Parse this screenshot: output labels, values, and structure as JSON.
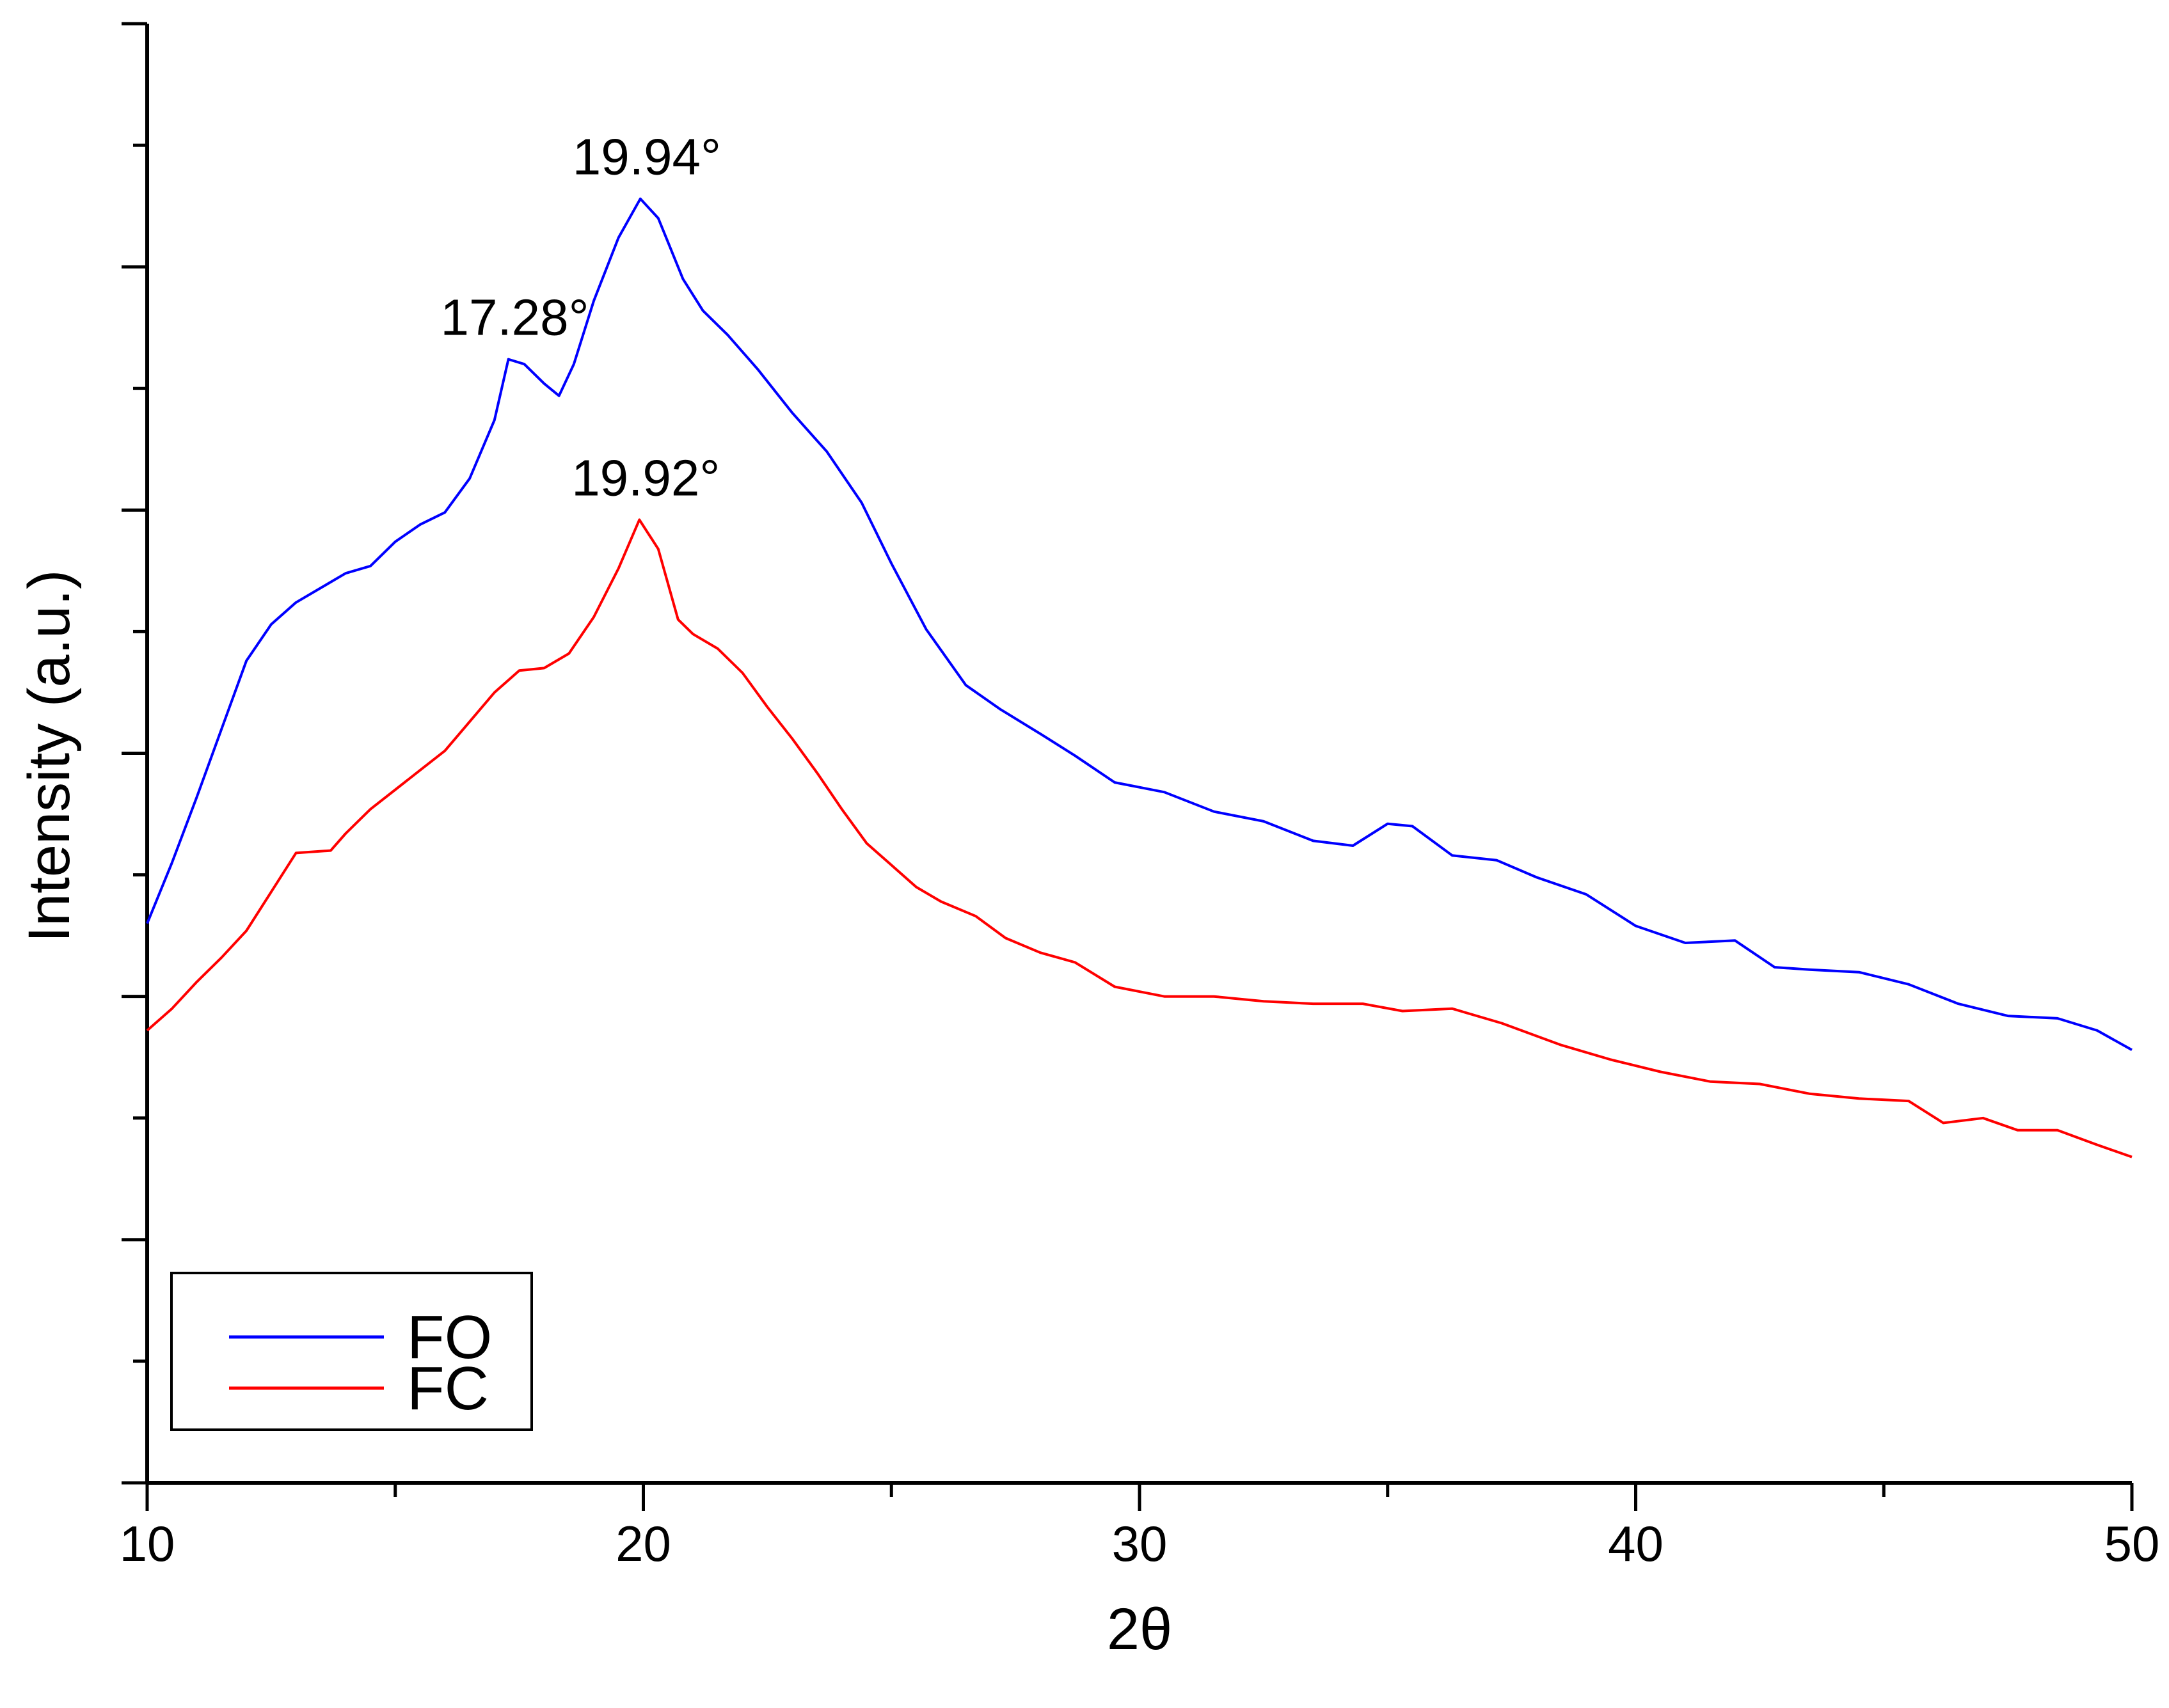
{
  "chart_data": {
    "type": "line",
    "xlabel": "2θ",
    "ylabel": "Intensity (a.u.)",
    "xlim": [
      10,
      50
    ],
    "ylim": [
      0,
      6
    ],
    "xticks": [
      10,
      20,
      30,
      40,
      50
    ],
    "xtick_labels": [
      "10",
      "20",
      "30",
      "40",
      "50"
    ],
    "grid": false,
    "legend_position": "bottom-left",
    "series": [
      {
        "name": "FO",
        "color": "#0000ff",
        "points": [
          [
            10,
            2.3
          ],
          [
            10.5,
            2.55
          ],
          [
            11,
            2.82
          ],
          [
            11.5,
            3.1
          ],
          [
            12,
            3.38
          ],
          [
            12.5,
            3.53
          ],
          [
            13,
            3.62
          ],
          [
            13.5,
            3.68
          ],
          [
            14,
            3.74
          ],
          [
            14.5,
            3.77
          ],
          [
            15,
            3.87
          ],
          [
            15.5,
            3.94
          ],
          [
            16,
            3.99
          ],
          [
            16.5,
            4.13
          ],
          [
            17,
            4.37
          ],
          [
            17.28,
            4.62
          ],
          [
            17.6,
            4.6
          ],
          [
            18,
            4.52
          ],
          [
            18.3,
            4.47
          ],
          [
            18.6,
            4.6
          ],
          [
            19,
            4.86
          ],
          [
            19.5,
            5.12
          ],
          [
            19.94,
            5.28
          ],
          [
            20.3,
            5.2
          ],
          [
            20.8,
            4.95
          ],
          [
            21.2,
            4.82
          ],
          [
            21.7,
            4.72
          ],
          [
            22.3,
            4.58
          ],
          [
            23,
            4.4
          ],
          [
            23.7,
            4.24
          ],
          [
            24.4,
            4.03
          ],
          [
            25,
            3.78
          ],
          [
            25.7,
            3.51
          ],
          [
            26.5,
            3.28
          ],
          [
            27.2,
            3.18
          ],
          [
            28,
            3.08
          ],
          [
            28.7,
            2.99
          ],
          [
            29.5,
            2.88
          ],
          [
            30.5,
            2.84
          ],
          [
            31.5,
            2.76
          ],
          [
            32.5,
            2.72
          ],
          [
            33.5,
            2.64
          ],
          [
            34.3,
            2.62
          ],
          [
            35,
            2.71
          ],
          [
            35.5,
            2.7
          ],
          [
            36.3,
            2.58
          ],
          [
            37.2,
            2.56
          ],
          [
            38,
            2.49
          ],
          [
            39,
            2.42
          ],
          [
            40,
            2.29
          ],
          [
            41,
            2.22
          ],
          [
            42,
            2.23
          ],
          [
            42.8,
            2.12
          ],
          [
            43.5,
            2.11
          ],
          [
            44.5,
            2.1
          ],
          [
            45.5,
            2.05
          ],
          [
            46.5,
            1.97
          ],
          [
            47.5,
            1.92
          ],
          [
            48.5,
            1.91
          ],
          [
            49.3,
            1.86
          ],
          [
            50,
            1.78
          ]
        ]
      },
      {
        "name": "FC",
        "color": "#ff0000",
        "points": [
          [
            10,
            1.86
          ],
          [
            10.5,
            1.95
          ],
          [
            11,
            2.06
          ],
          [
            11.5,
            2.16
          ],
          [
            12,
            2.27
          ],
          [
            12.5,
            2.43
          ],
          [
            13,
            2.59
          ],
          [
            13.7,
            2.6
          ],
          [
            14,
            2.67
          ],
          [
            14.5,
            2.77
          ],
          [
            15,
            2.85
          ],
          [
            15.5,
            2.93
          ],
          [
            16,
            3.01
          ],
          [
            16.5,
            3.13
          ],
          [
            17,
            3.25
          ],
          [
            17.5,
            3.34
          ],
          [
            18,
            3.35
          ],
          [
            18.5,
            3.41
          ],
          [
            19,
            3.56
          ],
          [
            19.5,
            3.76
          ],
          [
            19.92,
            3.96
          ],
          [
            20.3,
            3.84
          ],
          [
            20.7,
            3.55
          ],
          [
            21,
            3.49
          ],
          [
            21.5,
            3.43
          ],
          [
            22,
            3.33
          ],
          [
            22.5,
            3.19
          ],
          [
            23,
            3.06
          ],
          [
            23.5,
            2.92
          ],
          [
            24,
            2.77
          ],
          [
            24.5,
            2.63
          ],
          [
            25,
            2.54
          ],
          [
            25.5,
            2.45
          ],
          [
            26,
            2.39
          ],
          [
            26.7,
            2.33
          ],
          [
            27.3,
            2.24
          ],
          [
            28,
            2.18
          ],
          [
            28.7,
            2.14
          ],
          [
            29.5,
            2.04
          ],
          [
            30.5,
            2.0
          ],
          [
            31.5,
            2.0
          ],
          [
            32.5,
            1.98
          ],
          [
            33.5,
            1.97
          ],
          [
            34.5,
            1.97
          ],
          [
            35.3,
            1.94
          ],
          [
            36.3,
            1.95
          ],
          [
            37.3,
            1.89
          ],
          [
            38.5,
            1.8
          ],
          [
            39.5,
            1.74
          ],
          [
            40.5,
            1.69
          ],
          [
            41.5,
            1.65
          ],
          [
            42.5,
            1.64
          ],
          [
            43.5,
            1.6
          ],
          [
            44.5,
            1.58
          ],
          [
            45.5,
            1.57
          ],
          [
            46.2,
            1.48
          ],
          [
            47,
            1.5
          ],
          [
            47.7,
            1.45
          ],
          [
            48.5,
            1.45
          ],
          [
            49.3,
            1.39
          ],
          [
            50,
            1.34
          ]
        ]
      }
    ],
    "annotations": [
      {
        "text": "19.94°",
        "x": 19.94,
        "y": 5.28
      },
      {
        "text": "17.28°",
        "x": 17.28,
        "y": 4.62
      },
      {
        "text": "19.92°",
        "x": 19.92,
        "y": 3.96
      }
    ]
  }
}
